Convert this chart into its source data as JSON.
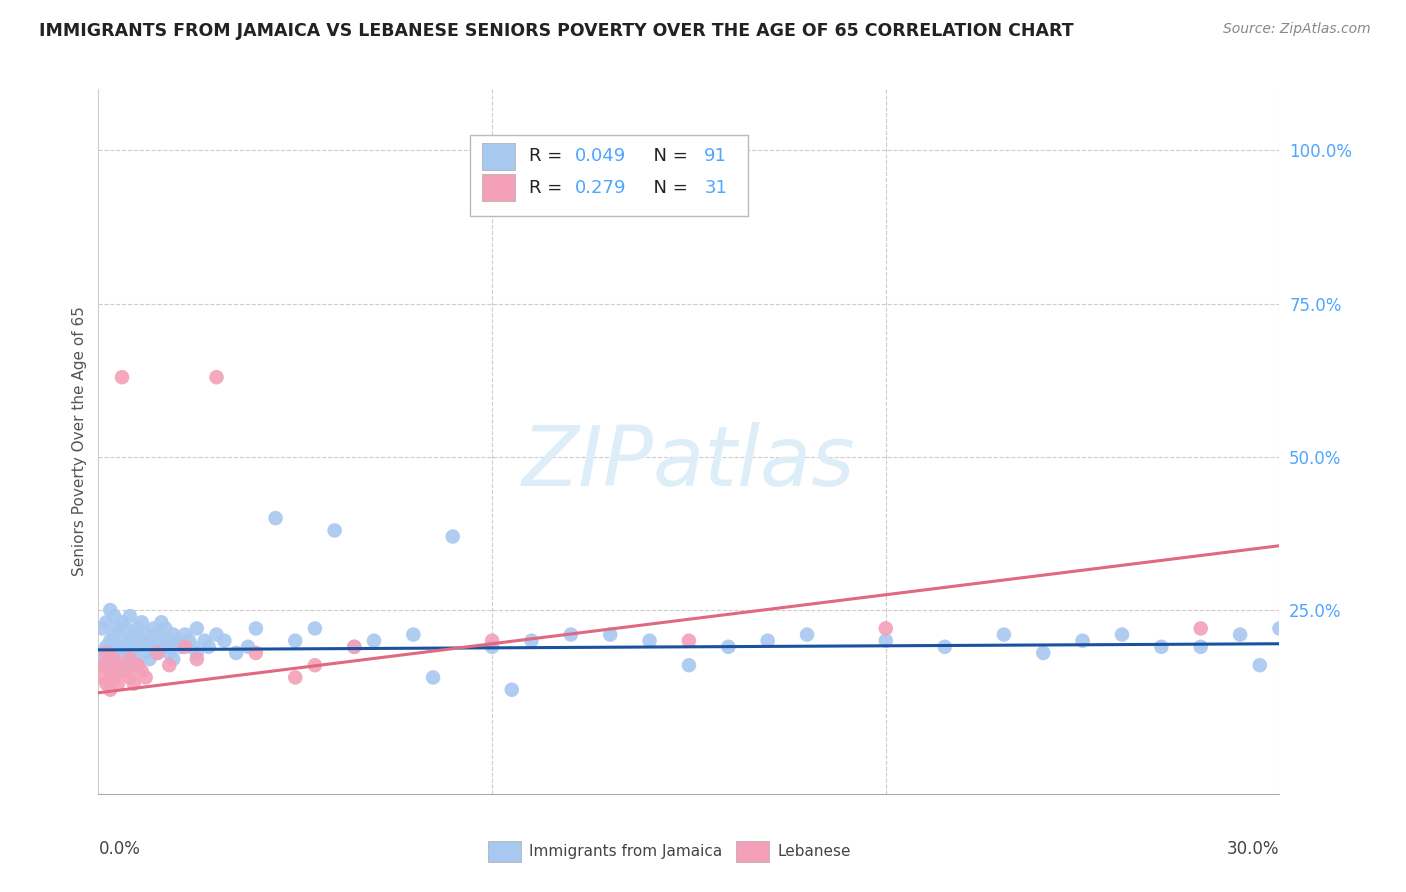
{
  "title": "IMMIGRANTS FROM JAMAICA VS LEBANESE SENIORS POVERTY OVER THE AGE OF 65 CORRELATION CHART",
  "source": "Source: ZipAtlas.com",
  "ylabel": "Seniors Poverty Over the Age of 65",
  "ytick_labels": [
    "100.0%",
    "75.0%",
    "50.0%",
    "25.0%"
  ],
  "ytick_values": [
    1.0,
    0.75,
    0.5,
    0.25
  ],
  "xlim": [
    0.0,
    0.3
  ],
  "ylim": [
    -0.05,
    1.1
  ],
  "color_jamaica": "#a8c8f0",
  "color_lebanese": "#f4a0b8",
  "color_line_jamaica": "#1a52a0",
  "color_line_lebanese": "#e06880",
  "color_axis_right": "#4da6ff",
  "color_text_dark": "#222222",
  "watermark_color": "#ddeef8",
  "jamaica_x": [
    0.001,
    0.001,
    0.002,
    0.002,
    0.002,
    0.003,
    0.003,
    0.003,
    0.004,
    0.004,
    0.004,
    0.004,
    0.005,
    0.005,
    0.005,
    0.006,
    0.006,
    0.006,
    0.007,
    0.007,
    0.007,
    0.008,
    0.008,
    0.008,
    0.009,
    0.009,
    0.01,
    0.01,
    0.01,
    0.011,
    0.011,
    0.012,
    0.012,
    0.013,
    0.013,
    0.014,
    0.014,
    0.015,
    0.015,
    0.016,
    0.016,
    0.017,
    0.017,
    0.018,
    0.018,
    0.019,
    0.019,
    0.02,
    0.021,
    0.022,
    0.023,
    0.024,
    0.025,
    0.025,
    0.027,
    0.028,
    0.03,
    0.032,
    0.035,
    0.038,
    0.04,
    0.045,
    0.05,
    0.055,
    0.06,
    0.065,
    0.07,
    0.08,
    0.09,
    0.1,
    0.11,
    0.12,
    0.14,
    0.16,
    0.18,
    0.2,
    0.215,
    0.23,
    0.25,
    0.27,
    0.29,
    0.295,
    0.3,
    0.28,
    0.26,
    0.24,
    0.17,
    0.15,
    0.13,
    0.105,
    0.085
  ],
  "jamaica_y": [
    0.18,
    0.22,
    0.19,
    0.16,
    0.23,
    0.2,
    0.17,
    0.25,
    0.18,
    0.21,
    0.15,
    0.24,
    0.19,
    0.22,
    0.16,
    0.2,
    0.23,
    0.17,
    0.19,
    0.22,
    0.15,
    0.2,
    0.18,
    0.24,
    0.21,
    0.17,
    0.19,
    0.22,
    0.16,
    0.2,
    0.23,
    0.18,
    0.21,
    0.2,
    0.17,
    0.22,
    0.19,
    0.21,
    0.18,
    0.2,
    0.23,
    0.19,
    0.22,
    0.18,
    0.2,
    0.21,
    0.17,
    0.2,
    0.19,
    0.21,
    0.2,
    0.19,
    0.22,
    0.18,
    0.2,
    0.19,
    0.21,
    0.2,
    0.18,
    0.19,
    0.22,
    0.4,
    0.2,
    0.22,
    0.38,
    0.19,
    0.2,
    0.21,
    0.37,
    0.19,
    0.2,
    0.21,
    0.2,
    0.19,
    0.21,
    0.2,
    0.19,
    0.21,
    0.2,
    0.19,
    0.21,
    0.16,
    0.22,
    0.19,
    0.21,
    0.18,
    0.2,
    0.16,
    0.21,
    0.12,
    0.14
  ],
  "lebanese_x": [
    0.001,
    0.001,
    0.002,
    0.002,
    0.003,
    0.003,
    0.004,
    0.004,
    0.005,
    0.005,
    0.006,
    0.007,
    0.008,
    0.008,
    0.009,
    0.01,
    0.011,
    0.012,
    0.015,
    0.018,
    0.022,
    0.025,
    0.03,
    0.04,
    0.05,
    0.055,
    0.065,
    0.1,
    0.15,
    0.2,
    0.28
  ],
  "lebanese_y": [
    0.14,
    0.16,
    0.13,
    0.18,
    0.15,
    0.12,
    0.17,
    0.14,
    0.16,
    0.13,
    0.63,
    0.15,
    0.14,
    0.17,
    0.13,
    0.16,
    0.15,
    0.14,
    0.18,
    0.16,
    0.19,
    0.17,
    0.63,
    0.18,
    0.14,
    0.16,
    0.19,
    0.2,
    0.2,
    0.22,
    0.22
  ]
}
